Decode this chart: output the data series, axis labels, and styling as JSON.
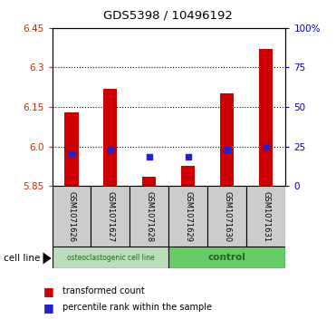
{
  "title": "GDS5398 / 10496192",
  "samples": [
    "GSM1071626",
    "GSM1071627",
    "GSM1071628",
    "GSM1071629",
    "GSM1071630",
    "GSM1071631"
  ],
  "bar_tops": [
    6.13,
    6.22,
    5.885,
    5.925,
    6.2,
    6.37
  ],
  "bar_bottom": 5.85,
  "blue_y": [
    5.972,
    5.988,
    5.962,
    5.962,
    5.988,
    5.998
  ],
  "ylim": [
    5.85,
    6.45
  ],
  "yticks_left": [
    5.85,
    6.0,
    6.15,
    6.3,
    6.45
  ],
  "yticks_right_vals": [
    0,
    25,
    50,
    75,
    100
  ],
  "yticks_right_pos": [
    5.85,
    6.0,
    6.15,
    6.3,
    6.45
  ],
  "hlines": [
    6.0,
    6.15,
    6.3
  ],
  "bar_color": "#cc0000",
  "blue_color": "#2222cc",
  "left_tick_color": "#cc2200",
  "right_tick_color": "#0000bb",
  "group1_label": "osteoclastogenic cell line",
  "group2_label": "control",
  "group1_indices": [
    0,
    1,
    2
  ],
  "group2_indices": [
    3,
    4,
    5
  ],
  "cell_line_label": "cell line",
  "legend1": "transformed count",
  "legend2": "percentile rank within the sample",
  "group1_color": "#bbddbb",
  "group2_color": "#66cc66",
  "sample_box_color": "#cccccc",
  "bar_width": 0.35
}
